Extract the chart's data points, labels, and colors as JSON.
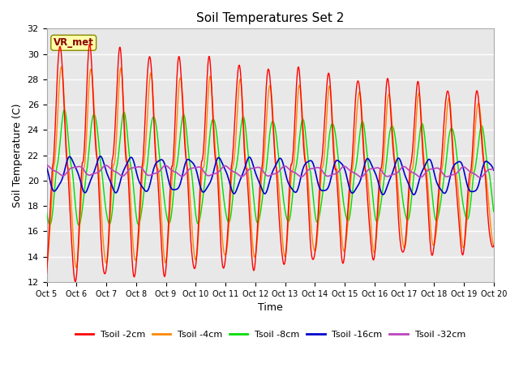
{
  "title": "Soil Temperatures Set 2",
  "xlabel": "Time",
  "ylabel": "Soil Temperature (C)",
  "ylim": [
    12,
    32
  ],
  "xlim": [
    0,
    15
  ],
  "annotation_text": "VR_met",
  "bg_color": "#e8e8e8",
  "colors": {
    "2cm": "#ff0000",
    "4cm": "#ff8800",
    "8cm": "#00dd00",
    "16cm": "#0000cc",
    "32cm": "#bb44bb"
  },
  "legend_labels": [
    "Tsoil -2cm",
    "Tsoil -4cm",
    "Tsoil -8cm",
    "Tsoil -16cm",
    "Tsoil -32cm"
  ],
  "xtick_labels": [
    "Oct 5",
    "Oct 6",
    "Oct 7",
    "Oct 8",
    "Oct 9",
    "Oct 10",
    "Oct 11",
    "Oct 12",
    "Oct 13",
    "Oct 14",
    "Oct 15",
    "Oct 16",
    "Oct 17",
    "Oct 18",
    "Oct 19",
    "Oct 20"
  ],
  "ytick_vals": [
    12,
    14,
    16,
    18,
    20,
    22,
    24,
    26,
    28,
    30,
    32
  ]
}
